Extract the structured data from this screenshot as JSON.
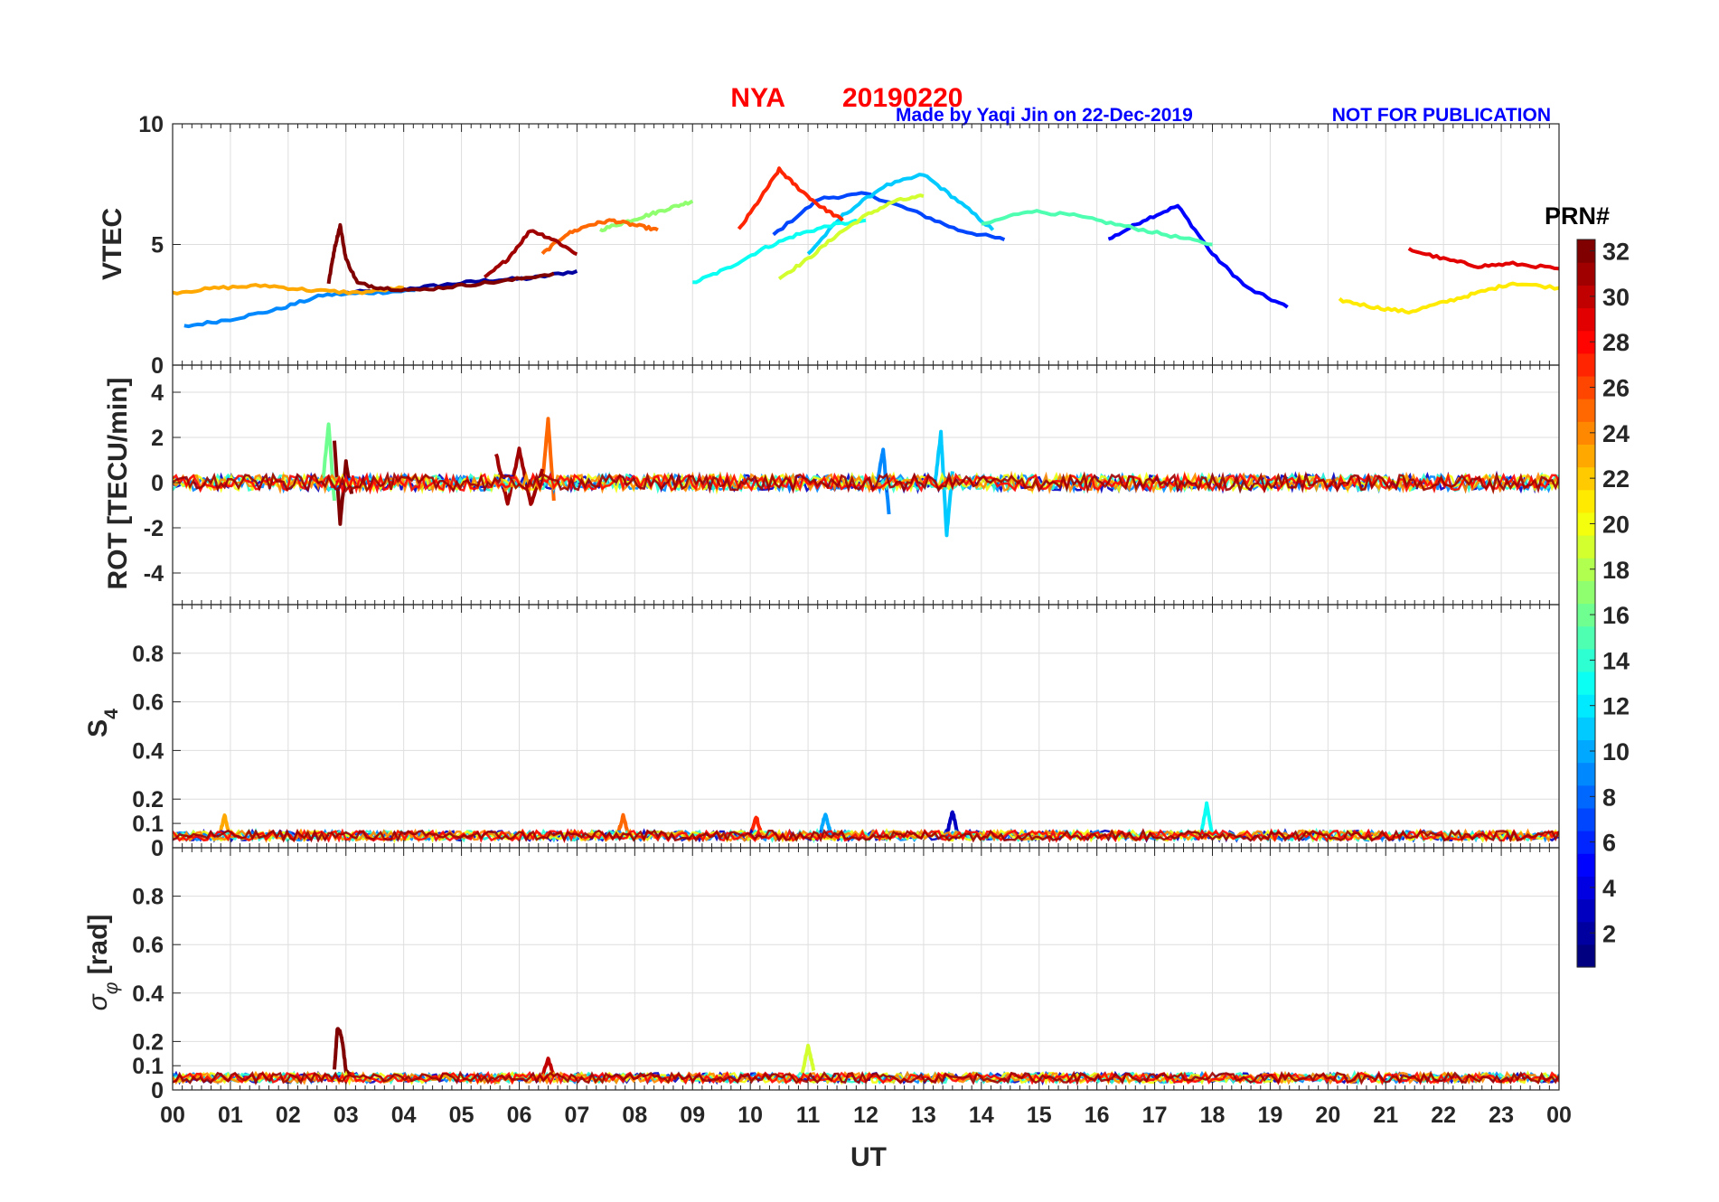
{
  "title": {
    "station": "NYA",
    "date": "20190220",
    "credit": "Made by Yaqi Jin on 22-Dec-2019",
    "notice": "NOT FOR PUBLICATION"
  },
  "colorbar": {
    "title": "PRN#",
    "range": [
      1,
      32
    ],
    "ticks": [
      "2",
      "4",
      "6",
      "8",
      "10",
      "12",
      "14",
      "16",
      "18",
      "20",
      "22",
      "24",
      "26",
      "28",
      "30",
      "32"
    ],
    "colormap": "jet"
  },
  "chart_data": [
    {
      "type": "line",
      "panel": "vtec",
      "ylabel": "VTEC",
      "ylim": [
        0,
        10
      ],
      "yticks": [
        "0",
        "5",
        "10"
      ],
      "xlim": [
        0,
        24
      ],
      "grid": true,
      "series": [
        {
          "prn": 2,
          "x": [
            3.0,
            3.8,
            4.6,
            5.4,
            6.2,
            7.0
          ],
          "y": [
            3.0,
            3.1,
            3.3,
            3.5,
            3.6,
            3.9
          ]
        },
        {
          "prn": 5,
          "x": [
            16.2,
            16.8,
            17.4,
            18.0,
            18.6,
            19.3
          ],
          "y": [
            5.2,
            6.0,
            6.6,
            4.6,
            3.2,
            2.4
          ]
        },
        {
          "prn": 7,
          "x": [
            10.4,
            11.2,
            12.0,
            12.8,
            13.6,
            14.4
          ],
          "y": [
            5.4,
            6.9,
            7.1,
            6.4,
            5.6,
            5.2
          ]
        },
        {
          "prn": 9,
          "x": [
            0.2,
            1.0,
            1.8,
            2.6,
            3.4,
            4.2
          ],
          "y": [
            1.6,
            1.9,
            2.3,
            2.9,
            3.0,
            3.1
          ]
        },
        {
          "prn": 11,
          "x": [
            11.0,
            11.6,
            12.3,
            13.0,
            13.6,
            14.2
          ],
          "y": [
            4.6,
            6.2,
            7.4,
            7.9,
            6.8,
            5.6
          ]
        },
        {
          "prn": 13,
          "x": [
            9.0,
            9.6,
            10.2,
            10.8,
            11.4,
            12.0
          ],
          "y": [
            3.4,
            4.0,
            4.8,
            5.4,
            5.8,
            6.0
          ]
        },
        {
          "prn": 15,
          "x": [
            14.0,
            14.8,
            15.6,
            16.4,
            17.2,
            18.0
          ],
          "y": [
            5.8,
            6.4,
            6.2,
            5.8,
            5.4,
            5.0
          ]
        },
        {
          "prn": 17,
          "x": [
            7.4,
            7.8,
            8.2,
            8.6,
            9.0
          ],
          "y": [
            5.6,
            5.9,
            6.2,
            6.5,
            6.8
          ]
        },
        {
          "prn": 19,
          "x": [
            10.5,
            11.0,
            11.5,
            12.0,
            12.5,
            13.0
          ],
          "y": [
            3.6,
            4.4,
            5.4,
            6.2,
            6.8,
            7.0
          ]
        },
        {
          "prn": 21,
          "x": [
            20.2,
            20.8,
            21.4,
            22.0,
            22.6,
            23.2,
            24.0
          ],
          "y": [
            2.7,
            2.4,
            2.2,
            2.6,
            3.0,
            3.4,
            3.2
          ]
        },
        {
          "prn": 23,
          "x": [
            0.0,
            0.8,
            1.6,
            2.4,
            3.2,
            4.0
          ],
          "y": [
            3.0,
            3.2,
            3.3,
            3.1,
            3.0,
            3.2
          ]
        },
        {
          "prn": 25,
          "x": [
            6.4,
            6.8,
            7.2,
            7.6,
            8.0,
            8.4
          ],
          "y": [
            4.6,
            5.4,
            5.8,
            6.0,
            5.8,
            5.6
          ]
        },
        {
          "prn": 27,
          "x": [
            9.8,
            10.2,
            10.5,
            10.8,
            11.2,
            11.6
          ],
          "y": [
            5.6,
            7.0,
            8.1,
            7.4,
            6.6,
            6.0
          ]
        },
        {
          "prn": 29,
          "x": [
            21.4,
            22.0,
            22.6,
            23.2,
            24.0
          ],
          "y": [
            4.8,
            4.4,
            4.1,
            4.2,
            4.0
          ]
        },
        {
          "prn": 31,
          "x": [
            5.4,
            5.8,
            6.2,
            6.6,
            7.0
          ],
          "y": [
            3.6,
            4.4,
            5.6,
            5.2,
            4.6
          ]
        },
        {
          "prn": 32,
          "x": [
            2.7,
            2.8,
            2.9,
            3.0,
            3.2,
            3.6,
            4.2,
            5.0,
            5.8,
            6.6
          ],
          "y": [
            3.4,
            4.8,
            5.8,
            4.4,
            3.4,
            3.2,
            3.1,
            3.3,
            3.5,
            3.8
          ]
        }
      ]
    },
    {
      "type": "line",
      "panel": "rot",
      "ylabel": "ROT [TECU/min]",
      "ylim": [
        -5.4,
        5.2
      ],
      "yticks": [
        "-4",
        "-2",
        "0",
        "2",
        "4"
      ],
      "xlim": [
        0,
        24
      ],
      "grid": true,
      "series": [
        {
          "prn": 16,
          "x": [
            2.6,
            2.7,
            2.8
          ],
          "y": [
            0.0,
            2.6,
            -0.8
          ]
        },
        {
          "prn": 32,
          "x": [
            2.8,
            2.9,
            3.0,
            3.1
          ],
          "y": [
            1.8,
            -1.8,
            0.9,
            -0.5
          ]
        },
        {
          "prn": 25,
          "x": [
            6.4,
            6.5,
            6.6
          ],
          "y": [
            0.0,
            2.8,
            -0.8
          ]
        },
        {
          "prn": 31,
          "x": [
            5.6,
            5.8,
            6.0,
            6.2,
            6.4
          ],
          "y": [
            1.3,
            -1.0,
            1.5,
            -1.0,
            0.6
          ]
        },
        {
          "prn": 11,
          "x": [
            13.2,
            13.3,
            13.4,
            13.5
          ],
          "y": [
            0.0,
            2.2,
            -2.3,
            0.5
          ]
        },
        {
          "prn": 9,
          "x": [
            12.2,
            12.3,
            12.4
          ],
          "y": [
            0.0,
            1.5,
            -1.4
          ]
        }
      ]
    },
    {
      "type": "line",
      "panel": "s4",
      "ylabel": "S4",
      "ylim": [
        0,
        1.0
      ],
      "yticks": [
        "0",
        "0.1",
        "0.2",
        "0.4",
        "0.6",
        "0.8"
      ],
      "xlim": [
        0,
        24
      ],
      "grid": true,
      "series": [
        {
          "prn": 13,
          "x": [
            17.8,
            17.9,
            18.0
          ],
          "y": [
            0.05,
            0.18,
            0.05
          ]
        },
        {
          "prn": 3,
          "x": [
            13.4,
            13.5,
            13.6
          ],
          "y": [
            0.05,
            0.15,
            0.05
          ]
        },
        {
          "prn": 10,
          "x": [
            11.2,
            11.3,
            11.4
          ],
          "y": [
            0.05,
            0.14,
            0.05
          ]
        },
        {
          "prn": 25,
          "x": [
            7.7,
            7.8,
            7.9
          ],
          "y": [
            0.05,
            0.13,
            0.05
          ]
        },
        {
          "prn": 27,
          "x": [
            10.0,
            10.1,
            10.2
          ],
          "y": [
            0.05,
            0.13,
            0.05
          ]
        },
        {
          "prn": 23,
          "x": [
            0.8,
            0.9,
            1.0
          ],
          "y": [
            0.04,
            0.13,
            0.04
          ]
        }
      ]
    },
    {
      "type": "line",
      "panel": "sigma_phi",
      "ylabel": "σφ [rad]",
      "ylim": [
        0,
        1.0
      ],
      "yticks": [
        "0",
        "0.1",
        "0.2",
        "0.4",
        "0.6",
        "0.8"
      ],
      "xlim": [
        0,
        24
      ],
      "xticks": [
        "00",
        "01",
        "02",
        "03",
        "04",
        "05",
        "06",
        "07",
        "08",
        "09",
        "10",
        "11",
        "12",
        "13",
        "14",
        "15",
        "16",
        "17",
        "18",
        "19",
        "20",
        "21",
        "22",
        "23",
        "00"
      ],
      "xlabel": "UT",
      "grid": true,
      "series": [
        {
          "prn": 32,
          "x": [
            2.8,
            2.85,
            2.9,
            2.95,
            3.0,
            3.1
          ],
          "y": [
            0.08,
            0.25,
            0.24,
            0.18,
            0.08,
            0.06
          ]
        },
        {
          "prn": 19,
          "x": [
            10.9,
            11.0,
            11.1
          ],
          "y": [
            0.07,
            0.18,
            0.08
          ]
        },
        {
          "prn": 30,
          "x": [
            6.4,
            6.5,
            6.6
          ],
          "y": [
            0.06,
            0.13,
            0.06
          ]
        }
      ]
    }
  ]
}
